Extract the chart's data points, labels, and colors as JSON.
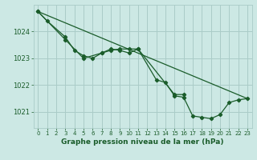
{
  "title": "Graphe pression niveau de la mer (hPa)",
  "background_color": "#cce8e4",
  "grid_color": "#aaccc8",
  "line_color": "#1a5c2a",
  "xlim": [
    -0.5,
    23.5
  ],
  "ylim": [
    1020.4,
    1025.0
  ],
  "yticks": [
    1021,
    1022,
    1023,
    1024
  ],
  "xticks": [
    0,
    1,
    2,
    3,
    4,
    5,
    6,
    7,
    8,
    9,
    10,
    11,
    12,
    13,
    14,
    15,
    16,
    17,
    18,
    19,
    20,
    21,
    22,
    23
  ],
  "line1_x": [
    0,
    1,
    3,
    4,
    5,
    6,
    7,
    8,
    9,
    10,
    11,
    15,
    16
  ],
  "line1_y": [
    1024.75,
    1024.4,
    1023.8,
    1023.3,
    1023.1,
    1023.0,
    1023.2,
    1023.3,
    1023.35,
    1023.35,
    1023.35,
    1021.65,
    1021.65
  ],
  "line2_x": [
    0,
    3,
    5,
    7,
    8,
    9,
    10,
    11,
    13,
    14,
    15,
    16,
    17,
    18,
    19,
    20,
    21,
    22,
    23
  ],
  "line2_y": [
    1024.75,
    1023.7,
    1023.0,
    1023.2,
    1023.35,
    1023.3,
    1023.2,
    1023.35,
    1022.2,
    1022.1,
    1021.6,
    1021.55,
    1020.85,
    1020.8,
    1020.75,
    1020.9,
    1021.35,
    1021.45,
    1021.5
  ],
  "line3_x": [
    0,
    23
  ],
  "line3_y": [
    1024.75,
    1021.5
  ],
  "ytick_fontsize": 6,
  "xtick_fontsize": 5,
  "title_fontsize": 6.5,
  "marker_size": 2.2,
  "line_width": 0.9
}
